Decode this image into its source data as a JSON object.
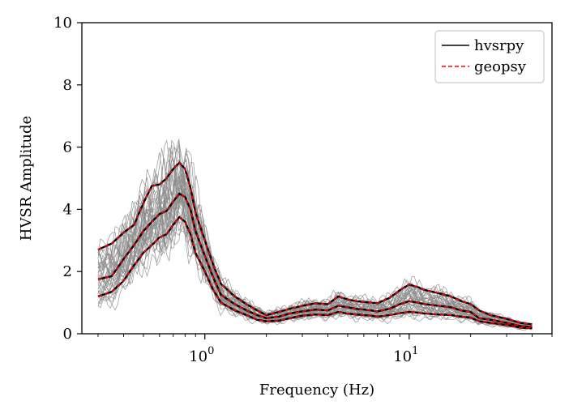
{
  "chart_data": {
    "type": "line",
    "title": "",
    "xlabel": "Frequency (Hz)",
    "ylabel": "HVSR Amplitude",
    "x_scale": "log",
    "xlim": [
      0.25,
      50
    ],
    "ylim": [
      0,
      10
    ],
    "grid": false,
    "legend_placement": "top-right",
    "x_tick_labels": [
      {
        "value": 1,
        "label": "10",
        "exponent": "0"
      },
      {
        "value": 10,
        "label": "10",
        "exponent": "1"
      }
    ],
    "y_ticks": [
      0,
      2,
      4,
      6,
      8,
      10
    ],
    "legend": [
      {
        "label": "hvsrpy",
        "color": "#000000",
        "style": "solid"
      },
      {
        "label": "geopsy",
        "color": "#ff0000",
        "style": "dashed"
      }
    ],
    "individual_curves": {
      "color": "#8c8c8c",
      "count": 40
    },
    "series": [
      {
        "name": "hvsrpy",
        "role": "mean",
        "x": [
          0.3,
          0.35,
          0.4,
          0.45,
          0.5,
          0.55,
          0.6,
          0.65,
          0.7,
          0.75,
          0.8,
          0.85,
          0.9,
          1.0,
          1.1,
          1.2,
          1.4,
          1.6,
          1.8,
          2.0,
          2.3,
          2.6,
          3.0,
          3.5,
          4.0,
          4.5,
          5.0,
          5.5,
          6.0,
          6.5,
          7.0,
          8.0,
          9.0,
          10.0,
          11.0,
          12.0,
          14.0,
          16.0,
          18.0,
          20.0,
          22.0,
          25.0,
          30.0,
          35.0,
          40.0
        ],
        "y": [
          1.75,
          1.85,
          2.4,
          2.85,
          3.3,
          3.6,
          3.85,
          3.95,
          4.25,
          4.5,
          4.4,
          4.0,
          3.3,
          2.5,
          1.8,
          1.25,
          0.95,
          0.75,
          0.6,
          0.5,
          0.55,
          0.65,
          0.72,
          0.78,
          0.75,
          0.9,
          0.85,
          0.8,
          0.78,
          0.75,
          0.72,
          0.8,
          0.95,
          1.05,
          1.0,
          0.95,
          0.9,
          0.85,
          0.75,
          0.7,
          0.5,
          0.45,
          0.35,
          0.25,
          0.22
        ]
      },
      {
        "name": "hvsrpy",
        "role": "upper",
        "x": [
          0.3,
          0.35,
          0.4,
          0.45,
          0.5,
          0.55,
          0.6,
          0.65,
          0.7,
          0.75,
          0.8,
          0.85,
          0.9,
          1.0,
          1.1,
          1.2,
          1.4,
          1.6,
          1.8,
          2.0,
          2.3,
          2.6,
          3.0,
          3.5,
          4.0,
          4.5,
          5.0,
          5.5,
          6.0,
          6.5,
          7.0,
          8.0,
          9.0,
          10.0,
          11.0,
          12.0,
          14.0,
          16.0,
          18.0,
          20.0,
          22.0,
          25.0,
          30.0,
          35.0,
          40.0
        ],
        "y": [
          2.7,
          2.9,
          3.25,
          3.5,
          4.2,
          4.75,
          4.8,
          5.0,
          5.3,
          5.5,
          5.3,
          4.7,
          3.9,
          3.0,
          2.2,
          1.6,
          1.2,
          0.95,
          0.75,
          0.6,
          0.7,
          0.8,
          0.9,
          0.98,
          0.95,
          1.2,
          1.1,
          1.05,
          1.02,
          1.0,
          0.98,
          1.15,
          1.4,
          1.58,
          1.5,
          1.4,
          1.3,
          1.2,
          1.05,
          0.95,
          0.75,
          0.6,
          0.48,
          0.35,
          0.3
        ]
      },
      {
        "name": "hvsrpy",
        "role": "lower",
        "x": [
          0.3,
          0.35,
          0.4,
          0.45,
          0.5,
          0.55,
          0.6,
          0.65,
          0.7,
          0.75,
          0.8,
          0.85,
          0.9,
          1.0,
          1.1,
          1.2,
          1.4,
          1.6,
          1.8,
          2.0,
          2.3,
          2.6,
          3.0,
          3.5,
          4.0,
          4.5,
          5.0,
          5.5,
          6.0,
          6.5,
          7.0,
          8.0,
          9.0,
          10.0,
          11.0,
          12.0,
          14.0,
          16.0,
          18.0,
          20.0,
          22.0,
          25.0,
          30.0,
          35.0,
          40.0
        ],
        "y": [
          1.2,
          1.35,
          1.7,
          2.2,
          2.6,
          2.85,
          3.1,
          3.2,
          3.5,
          3.75,
          3.6,
          3.2,
          2.6,
          2.0,
          1.4,
          1.0,
          0.75,
          0.6,
          0.45,
          0.4,
          0.42,
          0.5,
          0.58,
          0.62,
          0.6,
          0.7,
          0.65,
          0.62,
          0.6,
          0.58,
          0.55,
          0.6,
          0.66,
          0.7,
          0.68,
          0.65,
          0.62,
          0.6,
          0.55,
          0.52,
          0.4,
          0.35,
          0.28,
          0.2,
          0.18
        ]
      }
    ]
  }
}
